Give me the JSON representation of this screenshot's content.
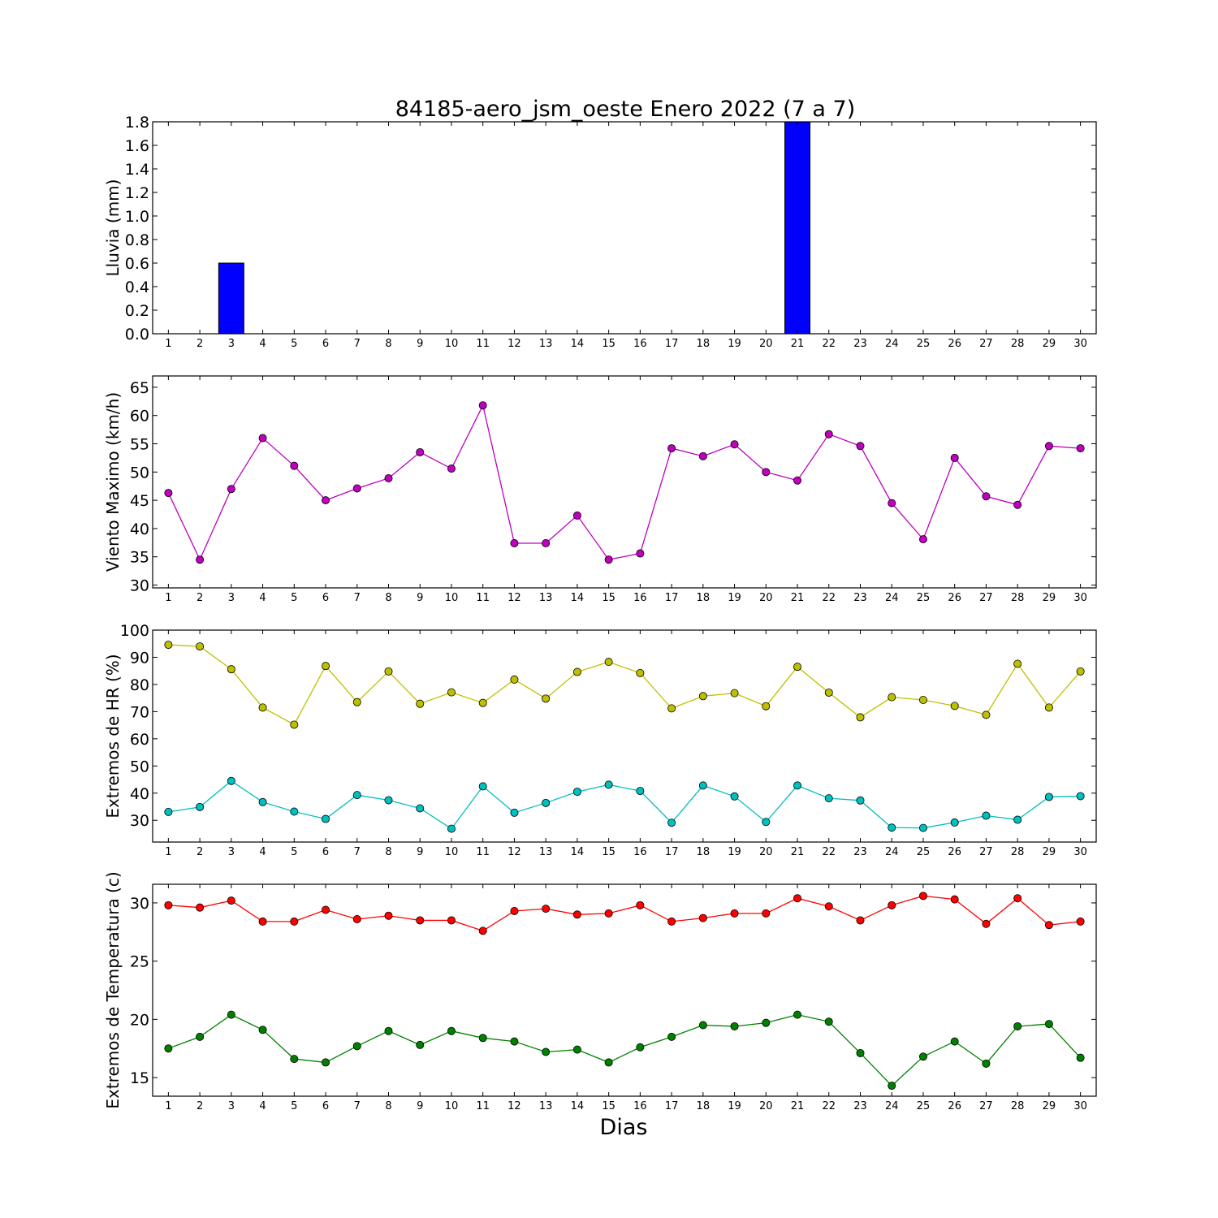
{
  "title": "84185-aero_jsm_oeste Enero 2022  (7 a 7)",
  "xlabel": "Dias",
  "chart_data": [
    {
      "type": "bar",
      "ylabel": "Lluvia (mm)",
      "ylim": [
        0,
        1.8
      ],
      "yticks": [
        0.0,
        0.2,
        0.4,
        0.6,
        0.8,
        1.0,
        1.2,
        1.4,
        1.6,
        1.8
      ],
      "ytick_decimals": 1,
      "x": [
        1,
        2,
        3,
        4,
        5,
        6,
        7,
        8,
        9,
        10,
        11,
        12,
        13,
        14,
        15,
        16,
        17,
        18,
        19,
        20,
        21,
        22,
        23,
        24,
        25,
        26,
        27,
        28,
        29,
        30
      ],
      "series": [
        {
          "color": "#0000ff",
          "values": [
            0,
            0,
            0.6,
            0,
            0,
            0,
            0,
            0,
            0,
            0,
            0,
            0,
            0,
            0,
            0,
            0,
            0,
            0,
            0,
            0,
            1.8,
            0,
            0,
            0,
            0,
            0,
            0,
            0,
            0,
            0
          ]
        }
      ]
    },
    {
      "type": "line",
      "ylabel": "Viento Maximo (km/h)",
      "ylim": [
        29.5,
        67
      ],
      "yticks": [
        30,
        35,
        40,
        45,
        50,
        55,
        60,
        65
      ],
      "ytick_decimals": 0,
      "x": [
        1,
        2,
        3,
        4,
        5,
        6,
        7,
        8,
        9,
        10,
        11,
        12,
        13,
        14,
        15,
        16,
        17,
        18,
        19,
        20,
        21,
        22,
        23,
        24,
        25,
        26,
        27,
        28,
        29,
        30
      ],
      "series": [
        {
          "color": "#bf00bf",
          "values": [
            46.3,
            34.5,
            47.0,
            56.0,
            51.1,
            45.0,
            47.1,
            48.9,
            53.5,
            50.6,
            61.8,
            37.4,
            37.4,
            42.3,
            34.5,
            35.6,
            54.2,
            52.8,
            54.9,
            50.0,
            48.5,
            56.7,
            54.6,
            44.5,
            38.1,
            52.5,
            45.7,
            44.2,
            54.6,
            54.2
          ]
        }
      ]
    },
    {
      "type": "line",
      "ylabel": "Extremos de HR (%)",
      "ylim": [
        22,
        100
      ],
      "yticks": [
        30,
        40,
        50,
        60,
        70,
        80,
        90,
        100
      ],
      "ytick_decimals": 0,
      "x": [
        1,
        2,
        3,
        4,
        5,
        6,
        7,
        8,
        9,
        10,
        11,
        12,
        13,
        14,
        15,
        16,
        17,
        18,
        19,
        20,
        21,
        22,
        23,
        24,
        25,
        26,
        27,
        28,
        29,
        30
      ],
      "series": [
        {
          "color": "#bfbf00",
          "values": [
            94.6,
            94.0,
            85.6,
            71.5,
            65.2,
            86.8,
            73.5,
            84.8,
            72.9,
            77.1,
            73.2,
            81.8,
            74.8,
            84.6,
            88.3,
            84.2,
            71.2,
            75.7,
            76.8,
            72.0,
            86.5,
            77.0,
            67.9,
            75.3,
            74.3,
            72.1,
            68.8,
            87.6,
            71.5,
            84.8
          ]
        },
        {
          "color": "#00bfbf",
          "values": [
            33.1,
            34.9,
            44.5,
            36.7,
            33.2,
            30.5,
            39.3,
            37.4,
            34.4,
            26.9,
            42.5,
            32.8,
            36.4,
            40.5,
            43.1,
            40.8,
            29.1,
            42.8,
            38.8,
            29.4,
            42.8,
            38.1,
            37.3,
            27.3,
            27.2,
            29.2,
            31.7,
            30.2,
            38.6,
            38.9
          ]
        }
      ]
    },
    {
      "type": "line",
      "ylabel": "Extremos de Temperatura (c)",
      "ylim": [
        13.4,
        31.6
      ],
      "yticks": [
        15,
        20,
        25,
        30
      ],
      "ytick_decimals": 0,
      "x": [
        1,
        2,
        3,
        4,
        5,
        6,
        7,
        8,
        9,
        10,
        11,
        12,
        13,
        14,
        15,
        16,
        17,
        18,
        19,
        20,
        21,
        22,
        23,
        24,
        25,
        26,
        27,
        28,
        29,
        30
      ],
      "series": [
        {
          "color": "#ff0000",
          "values": [
            29.8,
            29.6,
            30.2,
            28.4,
            28.4,
            29.4,
            28.6,
            28.9,
            28.5,
            28.5,
            27.6,
            29.3,
            29.5,
            29.0,
            29.1,
            29.8,
            28.4,
            28.7,
            29.1,
            29.1,
            30.4,
            29.7,
            28.5,
            29.8,
            30.6,
            30.3,
            28.2,
            30.4,
            28.1,
            28.4
          ]
        },
        {
          "color": "#008000",
          "values": [
            17.5,
            18.5,
            20.4,
            19.1,
            16.6,
            16.3,
            17.7,
            19.0,
            17.8,
            19.0,
            18.4,
            18.1,
            17.2,
            17.4,
            16.3,
            17.6,
            18.5,
            19.5,
            19.4,
            19.7,
            20.4,
            19.8,
            17.1,
            14.3,
            16.8,
            18.1,
            16.2,
            19.4,
            19.6,
            16.7
          ]
        }
      ]
    }
  ]
}
